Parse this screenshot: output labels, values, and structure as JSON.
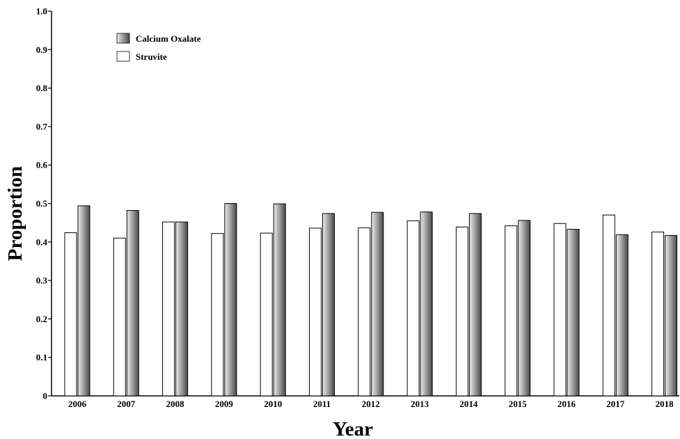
{
  "chart_data": {
    "type": "bar",
    "title": "",
    "xlabel": "Year",
    "ylabel": "Proportion",
    "ylim": [
      0,
      1.0
    ],
    "yticks": [
      0,
      0.1,
      0.2,
      0.3,
      0.4,
      0.5,
      0.6,
      0.7,
      0.8,
      0.9,
      1.0
    ],
    "ytick_labels": [
      "0",
      "0.1",
      "0.2",
      "0.3",
      "0.4",
      "0.5",
      "0.6",
      "0.7",
      "0.8",
      "0.9",
      "1.0"
    ],
    "categories": [
      "2006",
      "2007",
      "2008",
      "2009",
      "2010",
      "2011",
      "2012",
      "2013",
      "2014",
      "2015",
      "2016",
      "2017",
      "2018"
    ],
    "series": [
      {
        "name": "Struvite",
        "values": [
          0.424,
          0.41,
          0.452,
          0.422,
          0.423,
          0.436,
          0.437,
          0.455,
          0.439,
          0.442,
          0.448,
          0.47,
          0.426
        ]
      },
      {
        "name": "Calcium Oxalate",
        "values": [
          0.494,
          0.482,
          0.452,
          0.5,
          0.499,
          0.474,
          0.477,
          0.478,
          0.474,
          0.456,
          0.433,
          0.419,
          0.417
        ]
      }
    ],
    "legend": {
      "placement": "top-left",
      "order": [
        "Calcium Oxalate",
        "Struvite"
      ]
    },
    "grid": false,
    "colors": {
      "struvite_fill": "#ffffff",
      "oxalate_dark": "#4a4a4a",
      "oxalate_light": "#ececec",
      "axis": "#000000"
    }
  }
}
